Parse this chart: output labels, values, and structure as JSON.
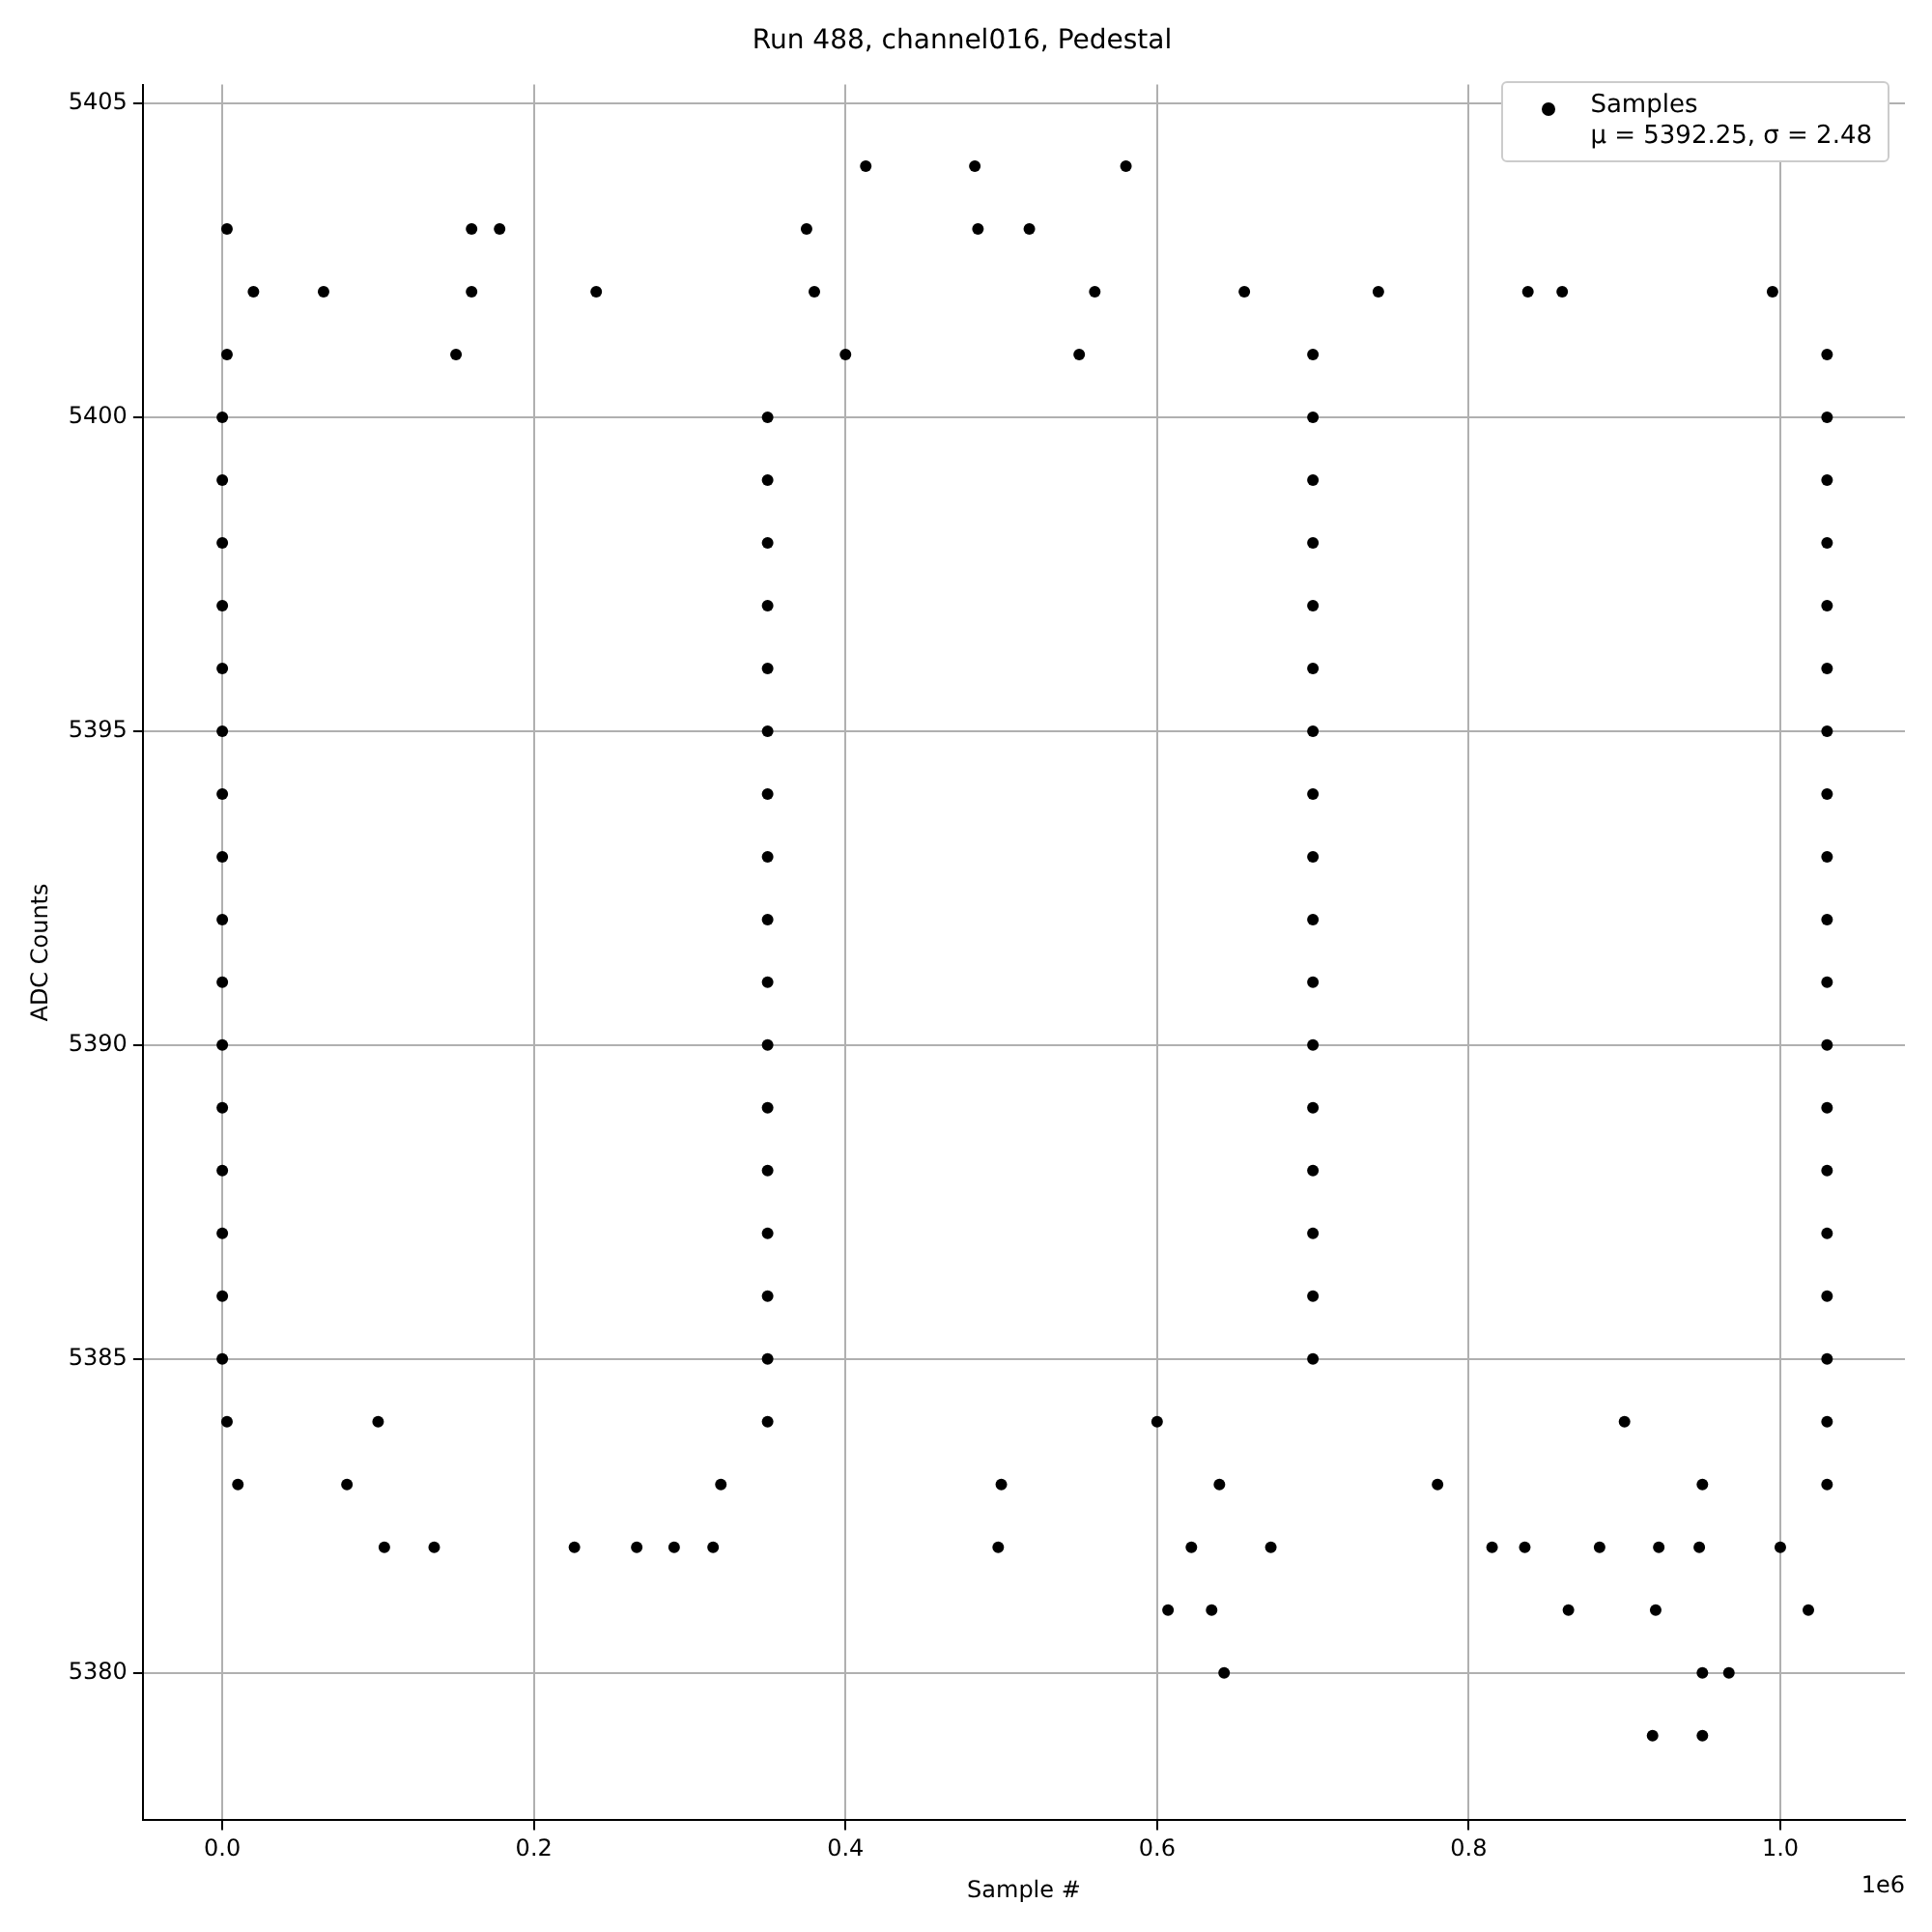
{
  "chart_data": {
    "type": "scatter",
    "title": "Run 488, channel016, Pedestal",
    "xlabel": "Sample #",
    "ylabel": "ADC Counts",
    "xlim": [
      -0.051,
      1.08
    ],
    "ylim": [
      5377.65,
      5405.3
    ],
    "xticks": [
      {
        "value": 0,
        "label": "0.0"
      },
      0.2,
      0.4,
      0.6,
      0.8,
      {
        "value": 1,
        "label": "1.0"
      }
    ],
    "yticks": [
      5380,
      5385,
      5390,
      5395,
      5400,
      5405
    ],
    "grid": true,
    "legend": "top right",
    "marker": "circle",
    "annotations": [
      "1e6"
    ],
    "series": [
      {
        "name": "Samples\nμ = 5392.25, σ = 2.48",
        "color": "#000000",
        "x": [
          0,
          0.35,
          0.7,
          1.03,
          0,
          0.35,
          0.7,
          1.03,
          0,
          0.35,
          0.7,
          1.03,
          0,
          0.35,
          0.7,
          1.03,
          0,
          0.35,
          0.7,
          1.03,
          0,
          0.35,
          0.7,
          1.03,
          0,
          0.35,
          0.7,
          1.03,
          0,
          0.35,
          0.7,
          1.03,
          0,
          0.35,
          0.7,
          1.03,
          0,
          0.35,
          0.7,
          1.03,
          0,
          0.35,
          0.7,
          1.03,
          0,
          0.35,
          0.7,
          1.03,
          0,
          0.35,
          0.7,
          1.03,
          0,
          0.35,
          0.7,
          1.03,
          0,
          0.35,
          0.7,
          1.03,
          0,
          0.35,
          0.7,
          1.03,
          0.003,
          0.15,
          0.4,
          0.55,
          0.7,
          1.03,
          0.003,
          0.1,
          0.35,
          0.6,
          0.9,
          1.03,
          0.01,
          0.08,
          0.32,
          0.5,
          0.64,
          0.78,
          0.95,
          1.03,
          0.02,
          0.065,
          0.16,
          0.24,
          0.38,
          0.56,
          0.656,
          0.742,
          0.838,
          0.86,
          0.995,
          0.003,
          0.16,
          0.178,
          0.375,
          0.485,
          0.518,
          0.413,
          0.483,
          0.58,
          0.104,
          0.136,
          0.226,
          0.266,
          0.29,
          0.315,
          0.498,
          0.622,
          0.673,
          0.815,
          0.836,
          0.884,
          0.922,
          0.948,
          1.0,
          0.607,
          0.635,
          0.864,
          0.92,
          1.018,
          0.643,
          0.95,
          0.967,
          0.918,
          0.95
        ],
        "values": [
          5385,
          5385,
          5385,
          5385,
          5386,
          5386,
          5386,
          5386,
          5387,
          5387,
          5387,
          5387,
          5388,
          5388,
          5388,
          5388,
          5389,
          5389,
          5389,
          5389,
          5390,
          5390,
          5390,
          5390,
          5391,
          5391,
          5391,
          5391,
          5392,
          5392,
          5392,
          5392,
          5393,
          5393,
          5393,
          5393,
          5394,
          5394,
          5394,
          5394,
          5395,
          5395,
          5395,
          5395,
          5396,
          5396,
          5396,
          5396,
          5397,
          5397,
          5397,
          5397,
          5398,
          5398,
          5398,
          5398,
          5399,
          5399,
          5399,
          5399,
          5400,
          5400,
          5400,
          5400,
          5401,
          5401,
          5401,
          5401,
          5401,
          5401,
          5384,
          5384,
          5384,
          5384,
          5384,
          5384,
          5383,
          5383,
          5383,
          5383,
          5383,
          5383,
          5383,
          5383,
          5402,
          5402,
          5402,
          5402,
          5402,
          5402,
          5402,
          5402,
          5402,
          5402,
          5402,
          5403,
          5403,
          5403,
          5403,
          5403,
          5403,
          5404,
          5404,
          5404,
          5382,
          5382,
          5382,
          5382,
          5382,
          5382,
          5382,
          5382,
          5382,
          5382,
          5382,
          5382,
          5382,
          5382,
          5382,
          5381,
          5381,
          5381,
          5381,
          5381,
          5380,
          5380,
          5380,
          5379,
          5379
        ]
      }
    ]
  }
}
